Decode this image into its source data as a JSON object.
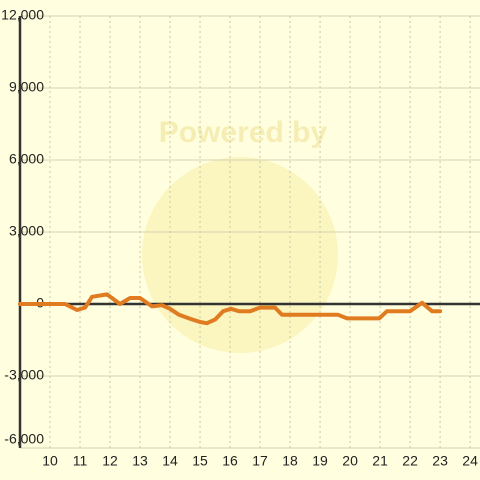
{
  "chart_data": {
    "type": "line",
    "watermark": "Powered by",
    "x": [
      9,
      10.5,
      10.9,
      11.17,
      11.4,
      11.9,
      12.33,
      12.67,
      13,
      13.4,
      13.73,
      14,
      14.3,
      14.63,
      15,
      15.23,
      15.5,
      15.77,
      16.03,
      16.3,
      16.67,
      17,
      17.5,
      17.73,
      19.6,
      19.9,
      20.97,
      21.23,
      22,
      22.4,
      22.73,
      23
    ],
    "series": [
      {
        "color": "#e07b20",
        "values": [
          0,
          0,
          -250,
          -150,
          300,
          400,
          0,
          250,
          250,
          -100,
          -50,
          -200,
          -450,
          -600,
          -750,
          -800,
          -650,
          -300,
          -200,
          -300,
          -300,
          -150,
          -150,
          -450,
          -450,
          -600,
          -600,
          -300,
          -300,
          50,
          -300,
          -300
        ]
      }
    ],
    "xlim": [
      9,
      24.33
    ],
    "xticks": [
      10,
      11,
      12,
      13,
      14,
      15,
      16,
      17,
      18,
      19,
      20,
      21,
      22,
      23,
      24
    ],
    "ylim": [
      -6000,
      12000
    ],
    "yticks": [
      {
        "value": -6000,
        "label": "-6,000"
      },
      {
        "value": -3000,
        "label": "-3,000"
      },
      0,
      {
        "value": 3000,
        "label": "3,000"
      },
      {
        "value": 6000,
        "label": "6,000"
      },
      {
        "value": 9000,
        "label": "9,000"
      },
      {
        "value": 12000,
        "label": "12,000"
      }
    ],
    "grid": true
  }
}
